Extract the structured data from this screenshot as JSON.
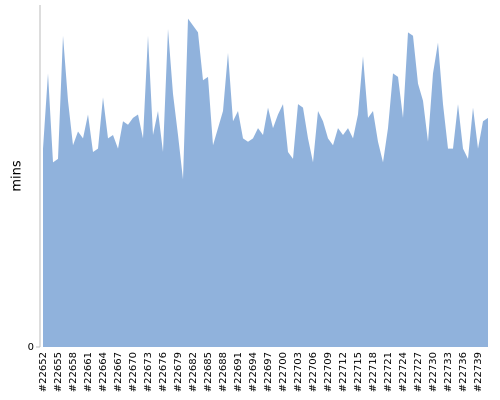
{
  "chart_data": {
    "type": "area",
    "y_label": "mins",
    "categories": [
      "#22652",
      null,
      null,
      "#22655",
      null,
      null,
      "#22658",
      null,
      null,
      "#22661",
      null,
      null,
      "#22664",
      null,
      null,
      "#22667",
      null,
      null,
      "#22670",
      null,
      null,
      "#22673",
      null,
      null,
      "#22676",
      null,
      null,
      "#22679",
      null,
      null,
      "#22682",
      null,
      null,
      "#22685",
      null,
      null,
      "#22688",
      null,
      null,
      "#22691",
      null,
      null,
      "#22694",
      null,
      null,
      "#22697",
      null,
      null,
      "#22700",
      null,
      null,
      "#22703",
      null,
      null,
      "#22706",
      null,
      null,
      "#22709",
      null,
      null,
      "#22712",
      null,
      null,
      "#22715",
      null,
      null,
      "#22718",
      null,
      null,
      "#22721",
      null,
      null,
      "#22724",
      null,
      null,
      "#22727",
      null,
      null,
      "#22730",
      null,
      null,
      "#22733",
      null,
      null,
      "#22736",
      null,
      null,
      "#22739",
      null,
      null
    ],
    "values": [
      58,
      80,
      54,
      55,
      91,
      72,
      59,
      63,
      61,
      68,
      57,
      58,
      73,
      61,
      62,
      58,
      66,
      65,
      67,
      68,
      61,
      91,
      62,
      69,
      57,
      93,
      74,
      62,
      49,
      96,
      94,
      92,
      78,
      79,
      59,
      64,
      69,
      86,
      66,
      69,
      61,
      60,
      61,
      64,
      62,
      70,
      64,
      68,
      71,
      57,
      55,
      71,
      70,
      61,
      54,
      69,
      66,
      61,
      59,
      64,
      62,
      64,
      61,
      68,
      85,
      67,
      69,
      60,
      54,
      64,
      80,
      79,
      67,
      92,
      91,
      77,
      72,
      60,
      80,
      89,
      71,
      58,
      58,
      71,
      58,
      55,
      70,
      58,
      66,
      67
    ],
    "color": "#90b2dc",
    "ylim": [
      0,
      100
    ],
    "yticks": [
      0
    ]
  }
}
